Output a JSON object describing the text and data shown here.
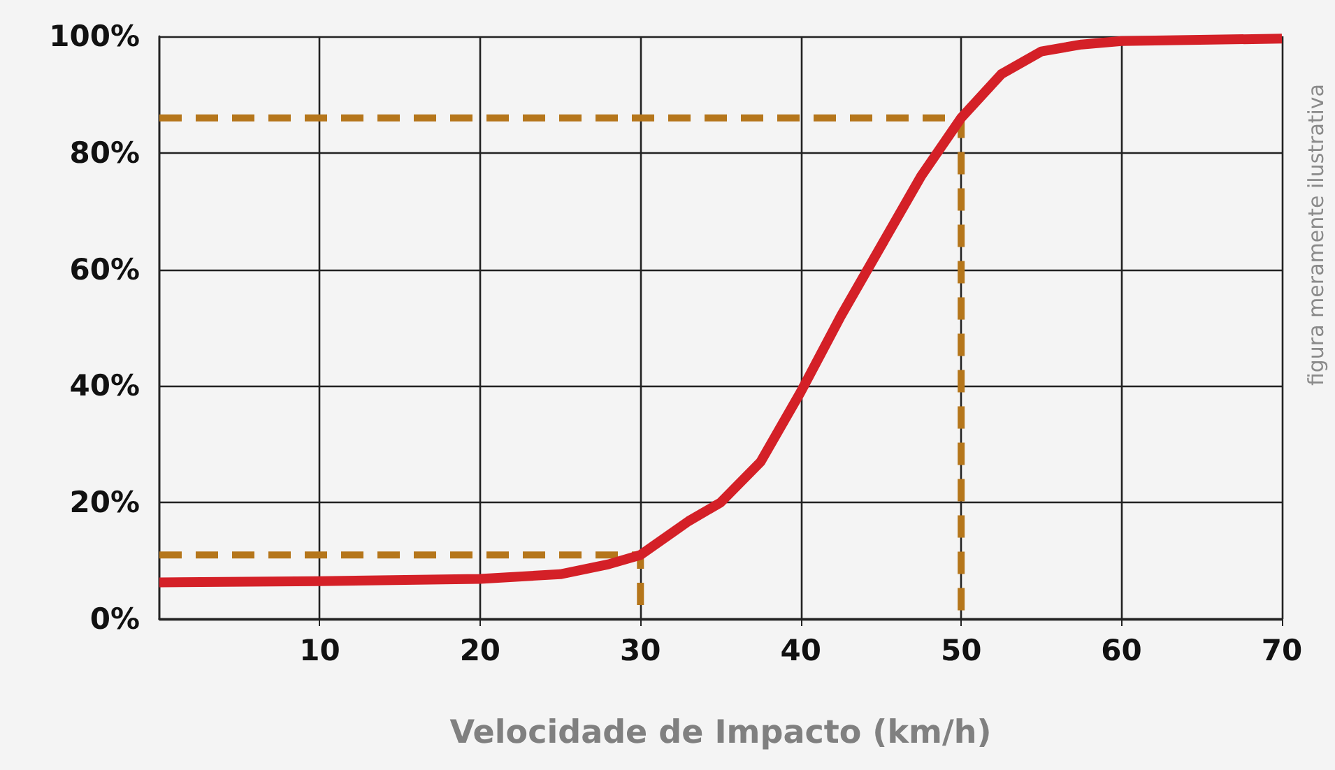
{
  "chart_data": {
    "type": "line",
    "xlabel": "Velocidade de Impacto (km/h)",
    "annotations": [
      "figura meramente ilustrativa"
    ],
    "xlim": [
      0,
      70
    ],
    "xticks": [
      10,
      20,
      30,
      40,
      50,
      60,
      70
    ],
    "ylim": [
      0,
      100
    ],
    "yticks": [
      {
        "value": 0,
        "label": "0%"
      },
      {
        "value": 20,
        "label": "20%"
      },
      {
        "value": 40,
        "label": "40%"
      },
      {
        "value": 60,
        "label": "60%"
      },
      {
        "value": 80,
        "label": "80%"
      },
      {
        "value": 100,
        "label": "100%"
      }
    ],
    "grid": true,
    "marker": "none",
    "series": [
      {
        "color": "#b5761b",
        "line_style": "dashed",
        "x": [
          0,
          30,
          30
        ],
        "values": [
          11,
          11,
          0
        ]
      },
      {
        "color": "#b5761b",
        "line_style": "dashed",
        "x": [
          0,
          50,
          50
        ],
        "values": [
          86,
          86,
          0
        ]
      },
      {
        "color": "#d42027",
        "line_style": "solid",
        "x": [
          0,
          10,
          20,
          25,
          28,
          30,
          33,
          35,
          37.5,
          40,
          42.5,
          45,
          47.5,
          50,
          52.5,
          55,
          57.5,
          60,
          70
        ],
        "values": [
          6.3,
          6.5,
          6.9,
          7.7,
          9.4,
          11,
          16.8,
          20,
          27,
          39,
          52,
          64,
          76,
          86,
          93.5,
          97.4,
          98.6,
          99.2,
          99.6
        ]
      }
    ]
  }
}
